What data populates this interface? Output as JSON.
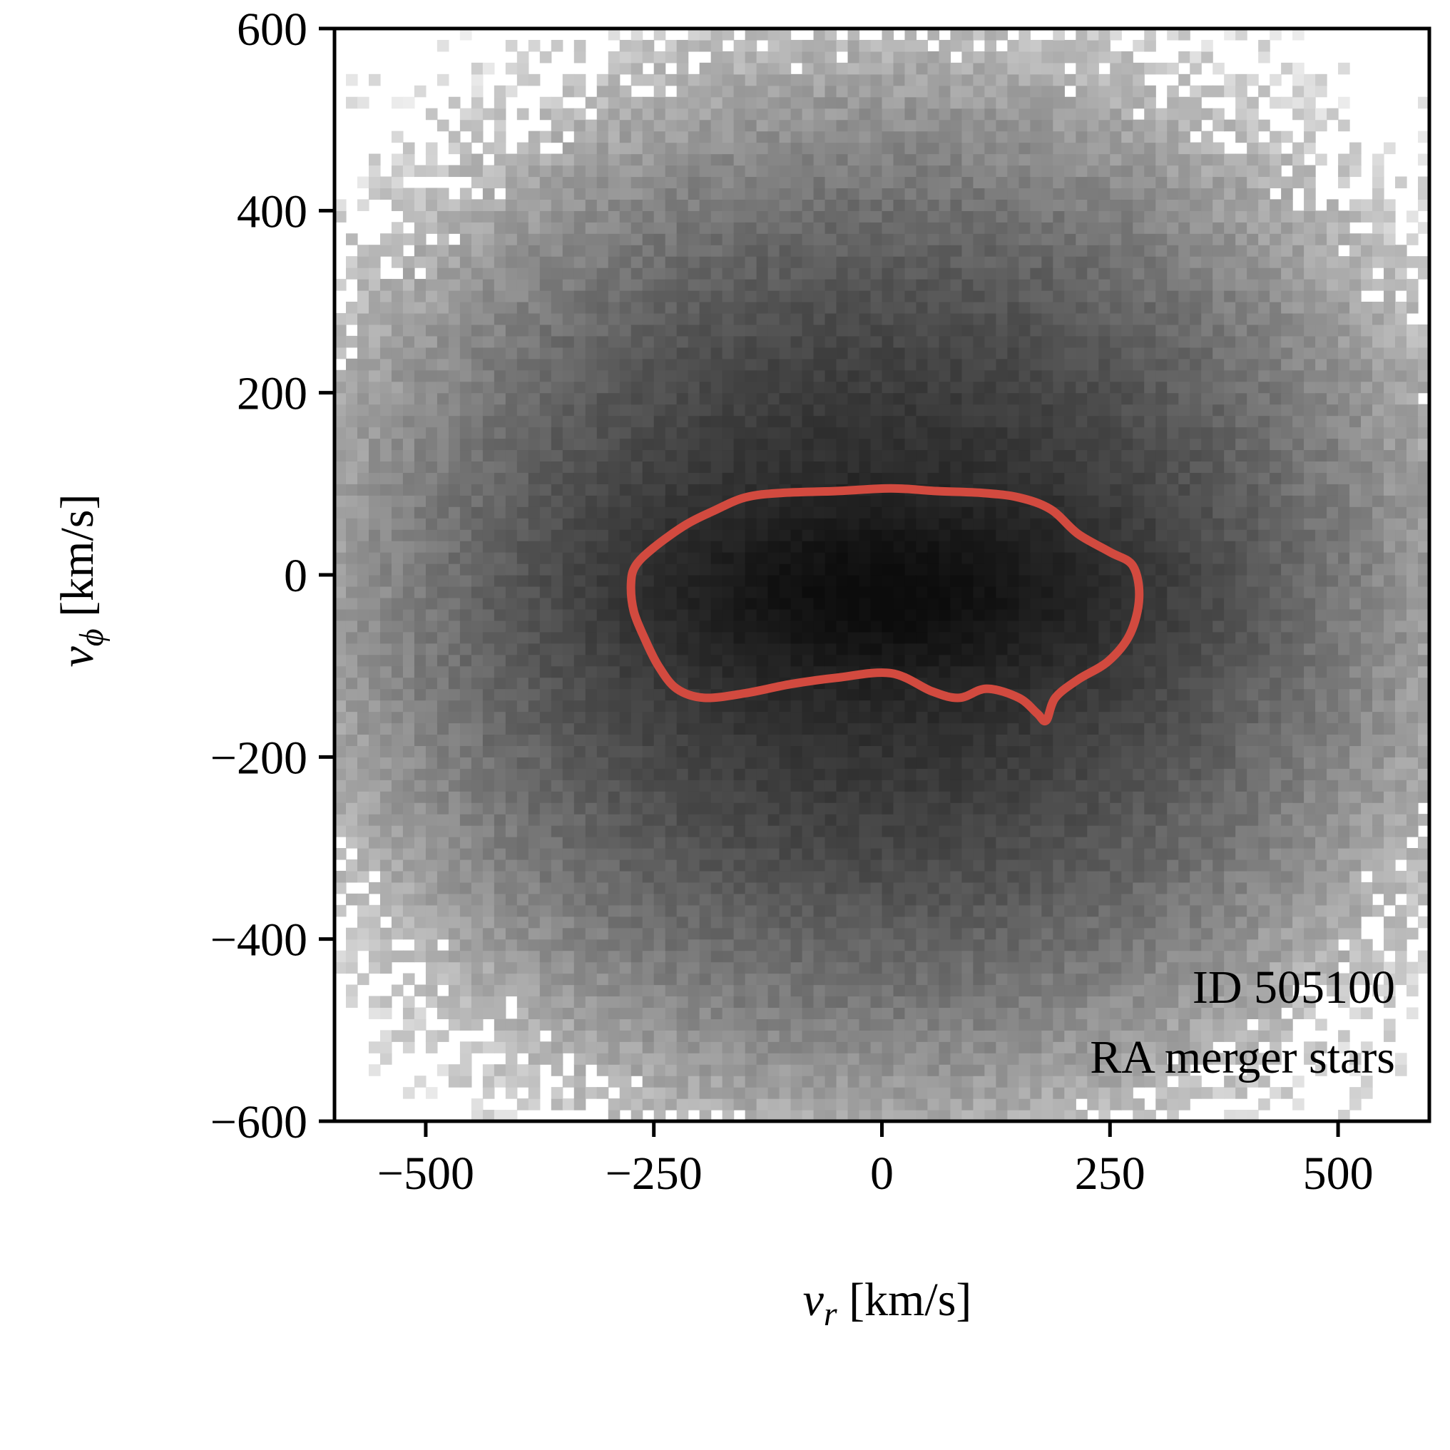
{
  "chart_data": {
    "type": "heatmap",
    "title": "",
    "xlabel": {
      "var": "v",
      "sub": "r",
      "units": " [km/s]"
    },
    "ylabel": {
      "var": "v",
      "sub": "ϕ",
      "units": " [km/s]"
    },
    "xlim": [
      -600,
      600
    ],
    "ylim": [
      -600,
      600
    ],
    "xticks": [
      -500,
      -250,
      0,
      250,
      500
    ],
    "yticks": [
      -600,
      -400,
      -200,
      0,
      200,
      400,
      600
    ],
    "xtick_labels": [
      "−500",
      "−250",
      "0",
      "250",
      "500"
    ],
    "ytick_labels": [
      "−600",
      "−400",
      "−200",
      "0",
      "200",
      "400",
      "600"
    ],
    "grid": false,
    "colormap": "Greys (log density)",
    "density_model": {
      "description": "2D histogram of merger-star velocities, peak near (0, -20) km/s",
      "center": [
        0,
        -20
      ],
      "core_sigma": [
        150,
        60
      ],
      "halo_sigma": [
        230,
        210
      ],
      "bin_width": 12.5
    },
    "contour": {
      "color": "#d24a3f",
      "points": [
        [
          -270,
          10
        ],
        [
          -250,
          30
        ],
        [
          -215,
          55
        ],
        [
          -185,
          70
        ],
        [
          -150,
          85
        ],
        [
          -110,
          90
        ],
        [
          -50,
          92
        ],
        [
          10,
          95
        ],
        [
          60,
          92
        ],
        [
          110,
          90
        ],
        [
          150,
          85
        ],
        [
          185,
          72
        ],
        [
          215,
          45
        ],
        [
          250,
          25
        ],
        [
          275,
          10
        ],
        [
          282,
          -25
        ],
        [
          272,
          -65
        ],
        [
          248,
          -95
        ],
        [
          215,
          -115
        ],
        [
          190,
          -135
        ],
        [
          180,
          -160
        ],
        [
          170,
          -152
        ],
        [
          150,
          -135
        ],
        [
          115,
          -125
        ],
        [
          85,
          -135
        ],
        [
          55,
          -128
        ],
        [
          10,
          -108
        ],
        [
          -50,
          -113
        ],
        [
          -100,
          -120
        ],
        [
          -150,
          -130
        ],
        [
          -195,
          -135
        ],
        [
          -225,
          -125
        ],
        [
          -245,
          -100
        ],
        [
          -260,
          -70
        ],
        [
          -272,
          -40
        ],
        [
          -275,
          -10
        ]
      ]
    },
    "annotations": [
      "ID 505100",
      "RA merger stars"
    ]
  }
}
